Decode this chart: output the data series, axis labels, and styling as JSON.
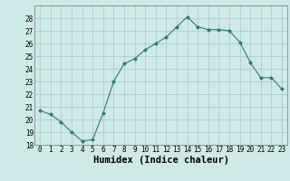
{
  "x": [
    0,
    1,
    2,
    3,
    4,
    5,
    6,
    7,
    8,
    9,
    10,
    11,
    12,
    13,
    14,
    15,
    16,
    17,
    18,
    19,
    20,
    21,
    22,
    23
  ],
  "y": [
    20.7,
    20.4,
    19.8,
    19.0,
    18.3,
    18.4,
    20.5,
    23.0,
    24.4,
    24.8,
    25.5,
    26.0,
    26.5,
    27.3,
    28.1,
    27.3,
    27.1,
    27.1,
    27.0,
    26.1,
    24.5,
    23.3,
    23.3,
    22.4
  ],
  "line_color": "#2e7d6e",
  "marker": "D",
  "marker_size": 2.0,
  "bg_color": "#cfe8e8",
  "grid_color": "#a8c8c8",
  "xlabel": "Humidex (Indice chaleur)",
  "ylim": [
    18,
    29
  ],
  "xlim": [
    -0.5,
    23.5
  ],
  "yticks": [
    18,
    19,
    20,
    21,
    22,
    23,
    24,
    25,
    26,
    27,
    28
  ],
  "xticks": [
    0,
    1,
    2,
    3,
    4,
    5,
    6,
    7,
    8,
    9,
    10,
    11,
    12,
    13,
    14,
    15,
    16,
    17,
    18,
    19,
    20,
    21,
    22,
    23
  ],
  "tick_fontsize": 5.5,
  "xlabel_fontsize": 7.5,
  "linewidth": 0.8
}
